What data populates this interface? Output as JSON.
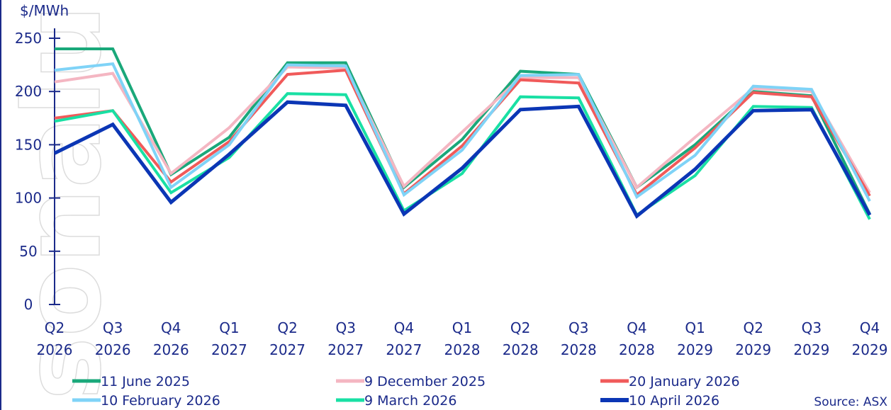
{
  "watermark": "sonalus",
  "chart_data": {
    "type": "line",
    "ylabel": "$/MWh",
    "ylim": [
      0,
      250
    ],
    "yticks": [
      0,
      50,
      100,
      150,
      200,
      250
    ],
    "grid": false,
    "legend": "bottom",
    "source": "Source: ASX",
    "categories": [
      [
        "Q2",
        "2026"
      ],
      [
        "Q3",
        "2026"
      ],
      [
        "Q4",
        "2026"
      ],
      [
        "Q1",
        "2027"
      ],
      [
        "Q2",
        "2027"
      ],
      [
        "Q3",
        "2027"
      ],
      [
        "Q4",
        "2027"
      ],
      [
        "Q1",
        "2028"
      ],
      [
        "Q2",
        "2028"
      ],
      [
        "Q3",
        "2028"
      ],
      [
        "Q4",
        "2028"
      ],
      [
        "Q1",
        "2029"
      ],
      [
        "Q2",
        "2029"
      ],
      [
        "Q3",
        "2029"
      ],
      [
        "Q4",
        "2029"
      ]
    ],
    "series": [
      {
        "name": "11 June 2025",
        "color": "#1aa87a",
        "width": 4,
        "values": [
          240,
          240,
          122,
          157,
          227,
          227,
          110,
          155,
          219,
          216,
          110,
          150,
          200,
          196,
          85
        ]
      },
      {
        "name": "9 December 2025",
        "color": "#f4b6c2",
        "width": 4,
        "values": [
          209,
          217,
          123,
          166,
          223,
          222,
          111,
          162,
          213,
          213,
          110,
          157,
          203,
          200,
          105
        ]
      },
      {
        "name": "20 January 2026",
        "color": "#f05a5a",
        "width": 4,
        "values": [
          175,
          182,
          115,
          153,
          216,
          220,
          104,
          149,
          211,
          208,
          103,
          147,
          199,
          195,
          102
        ]
      },
      {
        "name": "10 February 2026",
        "color": "#7fd3f7",
        "width": 4,
        "values": [
          220,
          226,
          110,
          150,
          225,
          224,
          103,
          145,
          215,
          216,
          101,
          140,
          205,
          202,
          97
        ]
      },
      {
        "name": "9 March 2026",
        "color": "#19e0a4",
        "width": 4,
        "values": [
          172,
          182,
          105,
          138,
          198,
          197,
          88,
          123,
          195,
          194,
          84,
          121,
          186,
          185,
          80
        ]
      },
      {
        "name": "10 April 2026",
        "color": "#0b36b5",
        "width": 5,
        "values": [
          142,
          169,
          96,
          141,
          190,
          187,
          85,
          128,
          183,
          186,
          83,
          127,
          182,
          183,
          84
        ]
      }
    ]
  }
}
